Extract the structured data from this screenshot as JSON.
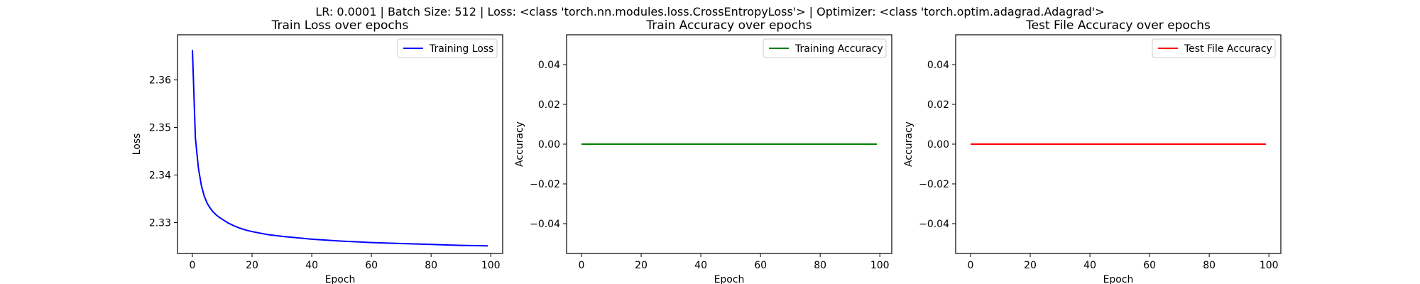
{
  "suptitle": "LR: 0.0001 | Batch Size: 512 | Loss: <class 'torch.nn.modules.loss.CrossEntropyLoss'> | Optimizer: <class 'torch.optim.adagrad.Adagrad'>",
  "chart_data": [
    {
      "type": "line",
      "title": "Train Loss over epochs",
      "xlabel": "Epoch",
      "ylabel": "Loss",
      "xlim": [
        -5,
        104
      ],
      "ylim": [
        2.3235,
        2.3695
      ],
      "xticks": [
        0,
        20,
        40,
        60,
        80,
        100
      ],
      "yticks": [
        2.33,
        2.34,
        2.35,
        2.36
      ],
      "ytick_labels": [
        "2.33",
        "2.34",
        "2.35",
        "2.36"
      ],
      "grid": false,
      "legend_position": "upper right",
      "series": [
        {
          "name": "Training Loss",
          "color": "#0000ff",
          "x": [
            0,
            1,
            2,
            3,
            4,
            5,
            6,
            7,
            8,
            9,
            10,
            12,
            14,
            16,
            18,
            20,
            25,
            30,
            40,
            50,
            60,
            70,
            80,
            90,
            99
          ],
          "y": [
            2.3663,
            2.3478,
            2.3415,
            2.3378,
            2.3355,
            2.334,
            2.333,
            2.3322,
            2.3316,
            2.3311,
            2.3307,
            2.3299,
            2.3293,
            2.3288,
            2.3284,
            2.3281,
            2.3275,
            2.3271,
            2.3265,
            2.3261,
            2.3258,
            2.3256,
            2.3254,
            2.3252,
            2.3251
          ]
        }
      ]
    },
    {
      "type": "line",
      "title": "Train Accuracy over epochs",
      "xlabel": "Epoch",
      "ylabel": "Accuracy",
      "xlim": [
        -5,
        104
      ],
      "ylim": [
        -0.055,
        0.055
      ],
      "xticks": [
        0,
        20,
        40,
        60,
        80,
        100
      ],
      "yticks": [
        -0.04,
        -0.02,
        0.0,
        0.02,
        0.04
      ],
      "ytick_labels": [
        "−0.04",
        "−0.02",
        "0.00",
        "0.02",
        "0.04"
      ],
      "grid": false,
      "legend_position": "upper right",
      "series": [
        {
          "name": "Training Accuracy",
          "color": "#008000",
          "x": [
            0,
            99
          ],
          "y": [
            0,
            0
          ]
        }
      ]
    },
    {
      "type": "line",
      "title": "Test File Accuracy over epochs",
      "xlabel": "Epoch",
      "ylabel": "Accuracy",
      "xlim": [
        -5,
        104
      ],
      "ylim": [
        -0.055,
        0.055
      ],
      "xticks": [
        0,
        20,
        40,
        60,
        80,
        100
      ],
      "yticks": [
        -0.04,
        -0.02,
        0.0,
        0.02,
        0.04
      ],
      "ytick_labels": [
        "−0.04",
        "−0.02",
        "0.00",
        "0.02",
        "0.04"
      ],
      "grid": false,
      "legend_position": "upper right",
      "series": [
        {
          "name": "Test File Accuracy",
          "color": "#ff0000",
          "x": [
            0,
            99
          ],
          "y": [
            0,
            0
          ]
        }
      ]
    }
  ]
}
